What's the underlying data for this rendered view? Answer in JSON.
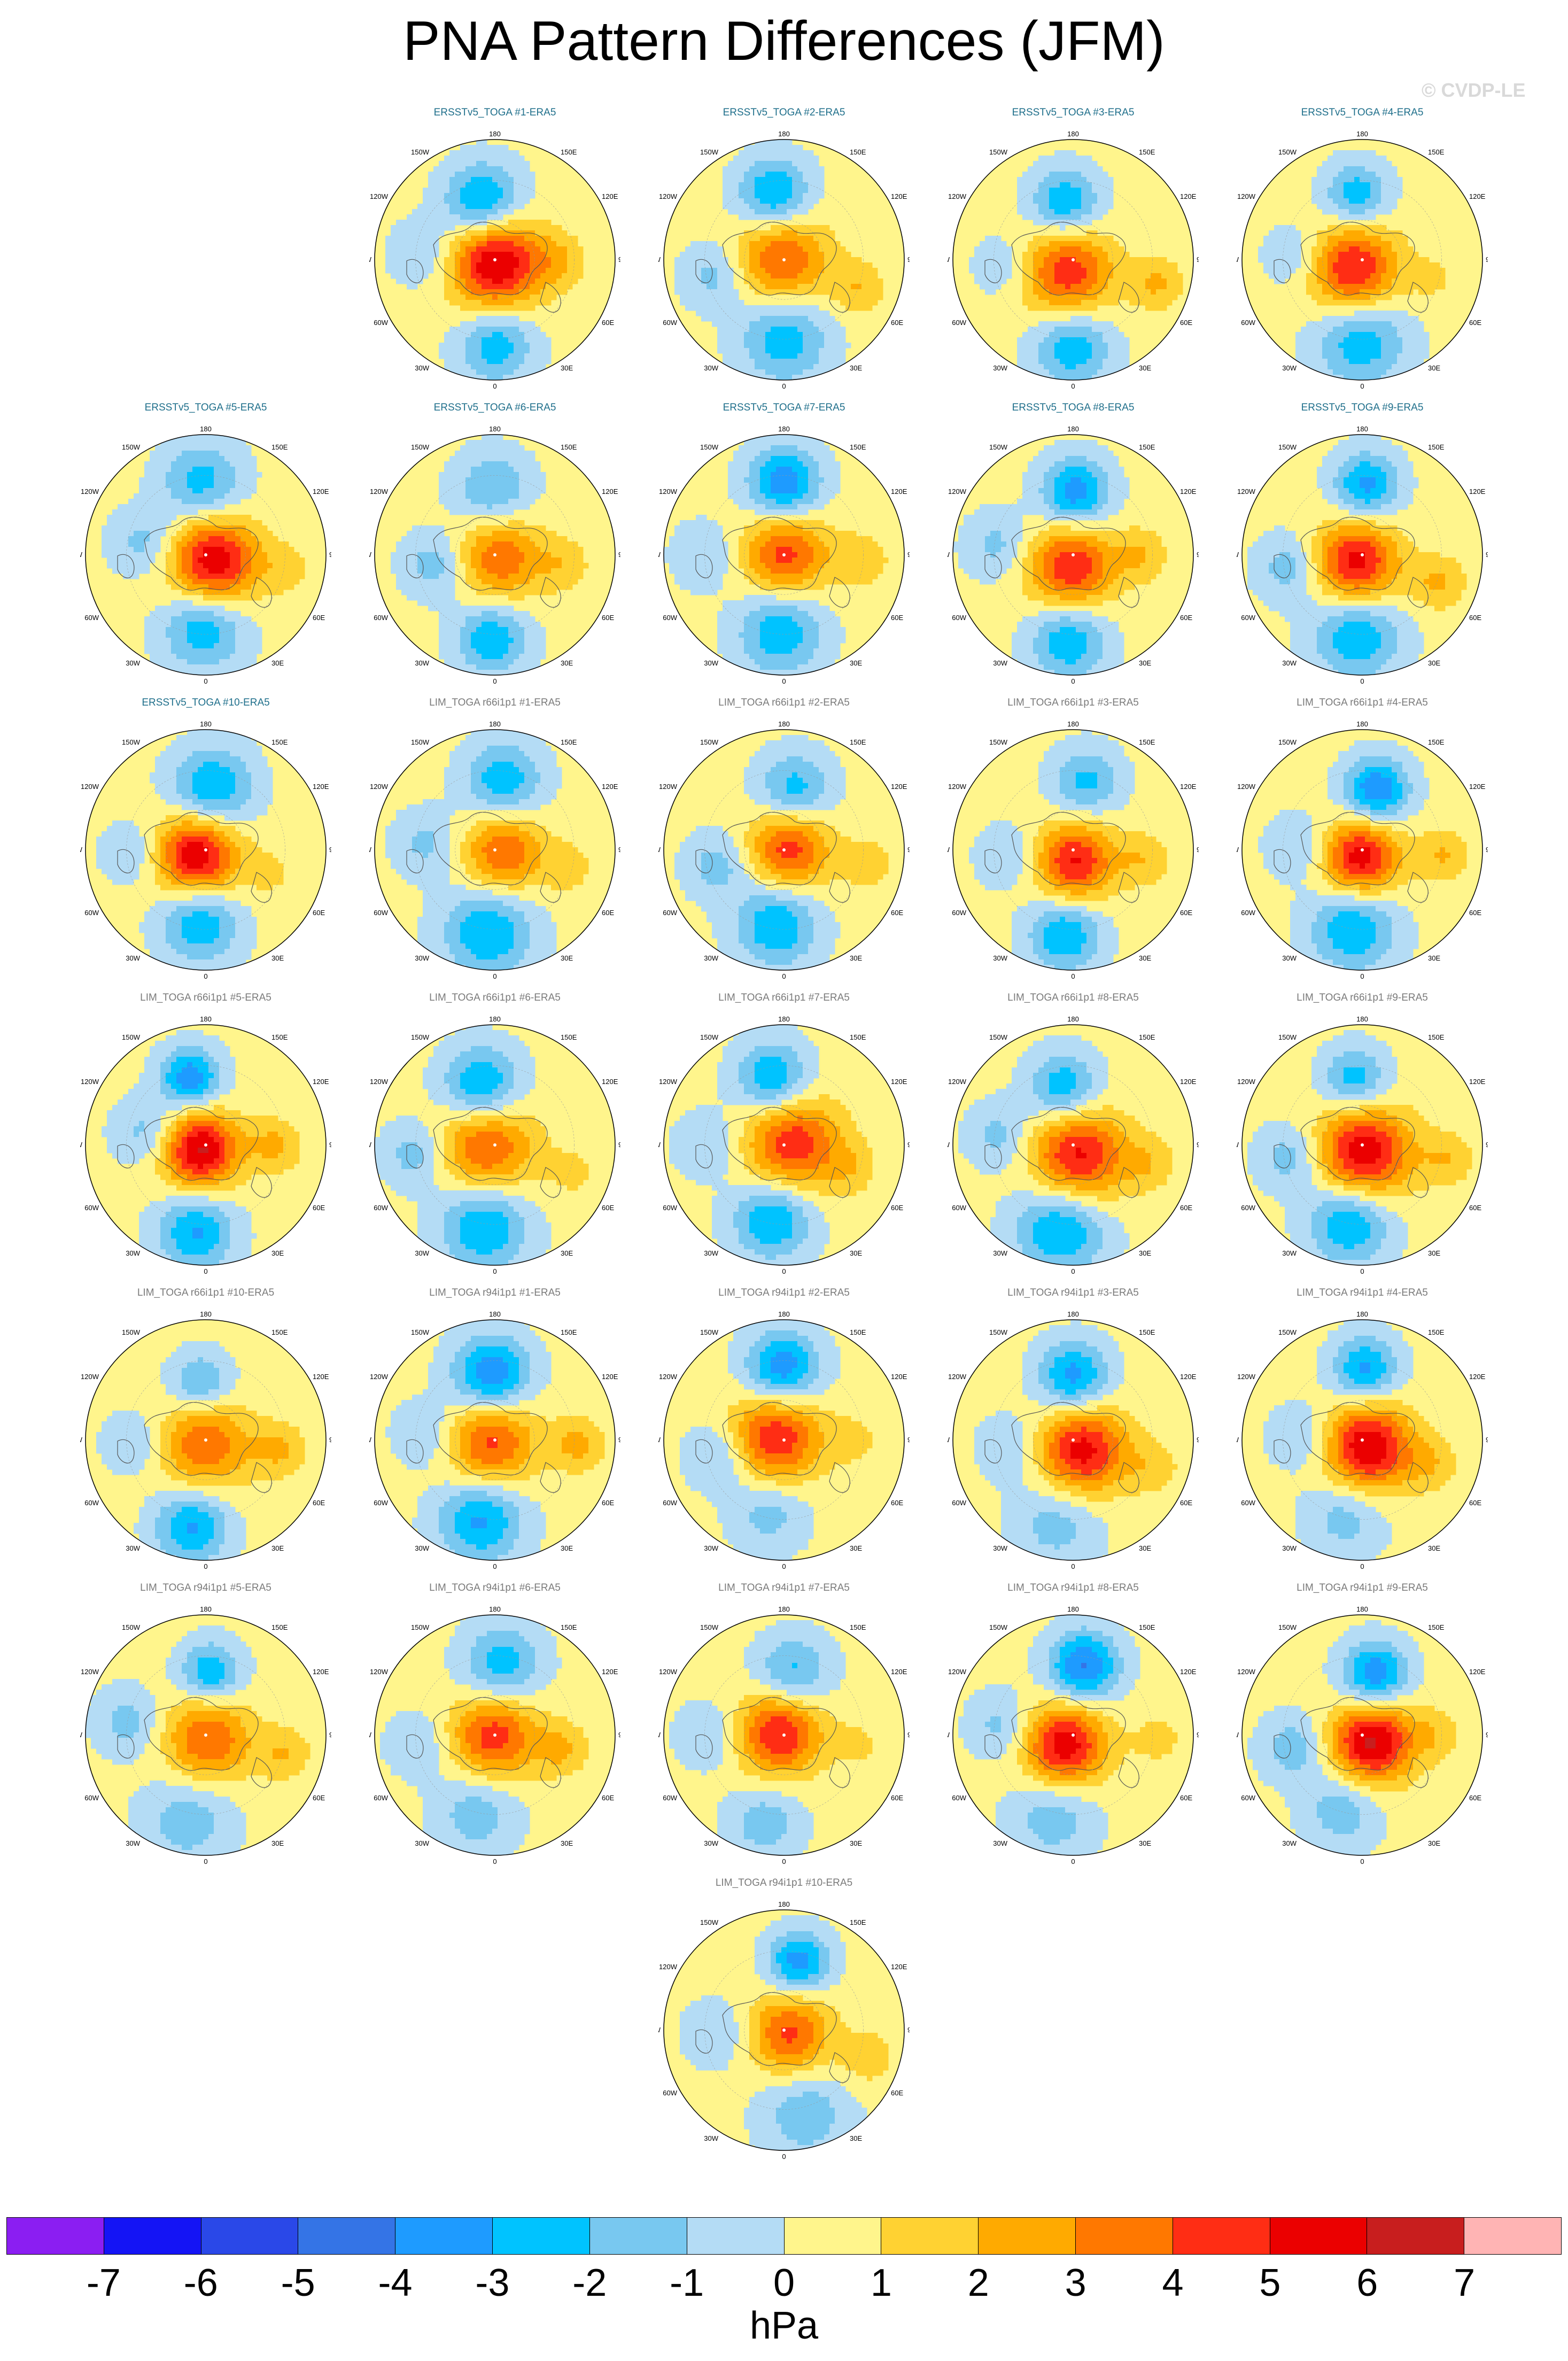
{
  "title": "PNA Pattern Differences (JFM)",
  "watermark": "© CVDP-LE",
  "panels": [
    {
      "label": "ERSSTv5_TOGA #1-ERA5",
      "group": "ersst",
      "variant": 0
    },
    {
      "label": "ERSSTv5_TOGA #2-ERA5",
      "group": "ersst",
      "variant": 1
    },
    {
      "label": "ERSSTv5_TOGA #3-ERA5",
      "group": "ersst",
      "variant": 2
    },
    {
      "label": "ERSSTv5_TOGA #4-ERA5",
      "group": "ersst",
      "variant": 3
    },
    {
      "label": "ERSSTv5_TOGA #5-ERA5",
      "group": "ersst",
      "variant": 4
    },
    {
      "label": "ERSSTv5_TOGA #6-ERA5",
      "group": "ersst",
      "variant": 5
    },
    {
      "label": "ERSSTv5_TOGA #7-ERA5",
      "group": "ersst",
      "variant": 6
    },
    {
      "label": "ERSSTv5_TOGA #8-ERA5",
      "group": "ersst",
      "variant": 7
    },
    {
      "label": "ERSSTv5_TOGA #9-ERA5",
      "group": "ersst",
      "variant": 8
    },
    {
      "label": "ERSSTv5_TOGA #10-ERA5",
      "group": "ersst",
      "variant": 9
    },
    {
      "label": "LIM_TOGA r66i1p1 #1-ERA5",
      "group": "lim",
      "variant": 10
    },
    {
      "label": "LIM_TOGA r66i1p1 #2-ERA5",
      "group": "lim",
      "variant": 11
    },
    {
      "label": "LIM_TOGA r66i1p1 #3-ERA5",
      "group": "lim",
      "variant": 12
    },
    {
      "label": "LIM_TOGA r66i1p1 #4-ERA5",
      "group": "lim",
      "variant": 13
    },
    {
      "label": "LIM_TOGA r66i1p1 #5-ERA5",
      "group": "lim",
      "variant": 14
    },
    {
      "label": "LIM_TOGA r66i1p1 #6-ERA5",
      "group": "lim",
      "variant": 15
    },
    {
      "label": "LIM_TOGA r66i1p1 #7-ERA5",
      "group": "lim",
      "variant": 16
    },
    {
      "label": "LIM_TOGA r66i1p1 #8-ERA5",
      "group": "lim",
      "variant": 17
    },
    {
      "label": "LIM_TOGA r66i1p1 #9-ERA5",
      "group": "lim",
      "variant": 18
    },
    {
      "label": "LIM_TOGA r66i1p1 #10-ERA5",
      "group": "lim",
      "variant": 19
    },
    {
      "label": "LIM_TOGA r94i1p1 #1-ERA5",
      "group": "lim",
      "variant": 20
    },
    {
      "label": "LIM_TOGA r94i1p1 #2-ERA5",
      "group": "lim",
      "variant": 21
    },
    {
      "label": "LIM_TOGA r94i1p1 #3-ERA5",
      "group": "lim",
      "variant": 22
    },
    {
      "label": "LIM_TOGA r94i1p1 #4-ERA5",
      "group": "lim",
      "variant": 23
    },
    {
      "label": "LIM_TOGA r94i1p1 #5-ERA5",
      "group": "lim",
      "variant": 24
    },
    {
      "label": "LIM_TOGA r94i1p1 #6-ERA5",
      "group": "lim",
      "variant": 25
    },
    {
      "label": "LIM_TOGA r94i1p1 #7-ERA5",
      "group": "lim",
      "variant": 26
    },
    {
      "label": "LIM_TOGA r94i1p1 #8-ERA5",
      "group": "lim",
      "variant": 27
    },
    {
      "label": "LIM_TOGA r94i1p1 #9-ERA5",
      "group": "lim",
      "variant": 28
    },
    {
      "label": "LIM_TOGA r94i1p1 #10-ERA5",
      "group": "lim",
      "variant": 29
    }
  ],
  "map_labels": {
    "top": "180",
    "top_left": "150W",
    "top_right": "150E",
    "upper_left": "120W",
    "upper_right": "120E",
    "left": "90W",
    "right": "90E",
    "lower_left": "60W",
    "lower_right": "60E",
    "bottom_left": "30W",
    "bottom_right": "30E",
    "bottom": "0"
  },
  "colorbar": {
    "colors": [
      "#8b1ef2",
      "#1414f5",
      "#2a48e8",
      "#3474e6",
      "#1e9bff",
      "#00c3ff",
      "#78c8f0",
      "#b4dcf5",
      "#fff58c",
      "#ffd232",
      "#ffaa00",
      "#ff7800",
      "#ff2d14",
      "#eb0000",
      "#c81e1e",
      "#ffb4b4"
    ],
    "labels": [
      "-7",
      "-6",
      "-5",
      "-4",
      "-3",
      "-2",
      "-1",
      "0",
      "1",
      "2",
      "3",
      "4",
      "5",
      "6",
      "7"
    ],
    "units": "hPa"
  }
}
